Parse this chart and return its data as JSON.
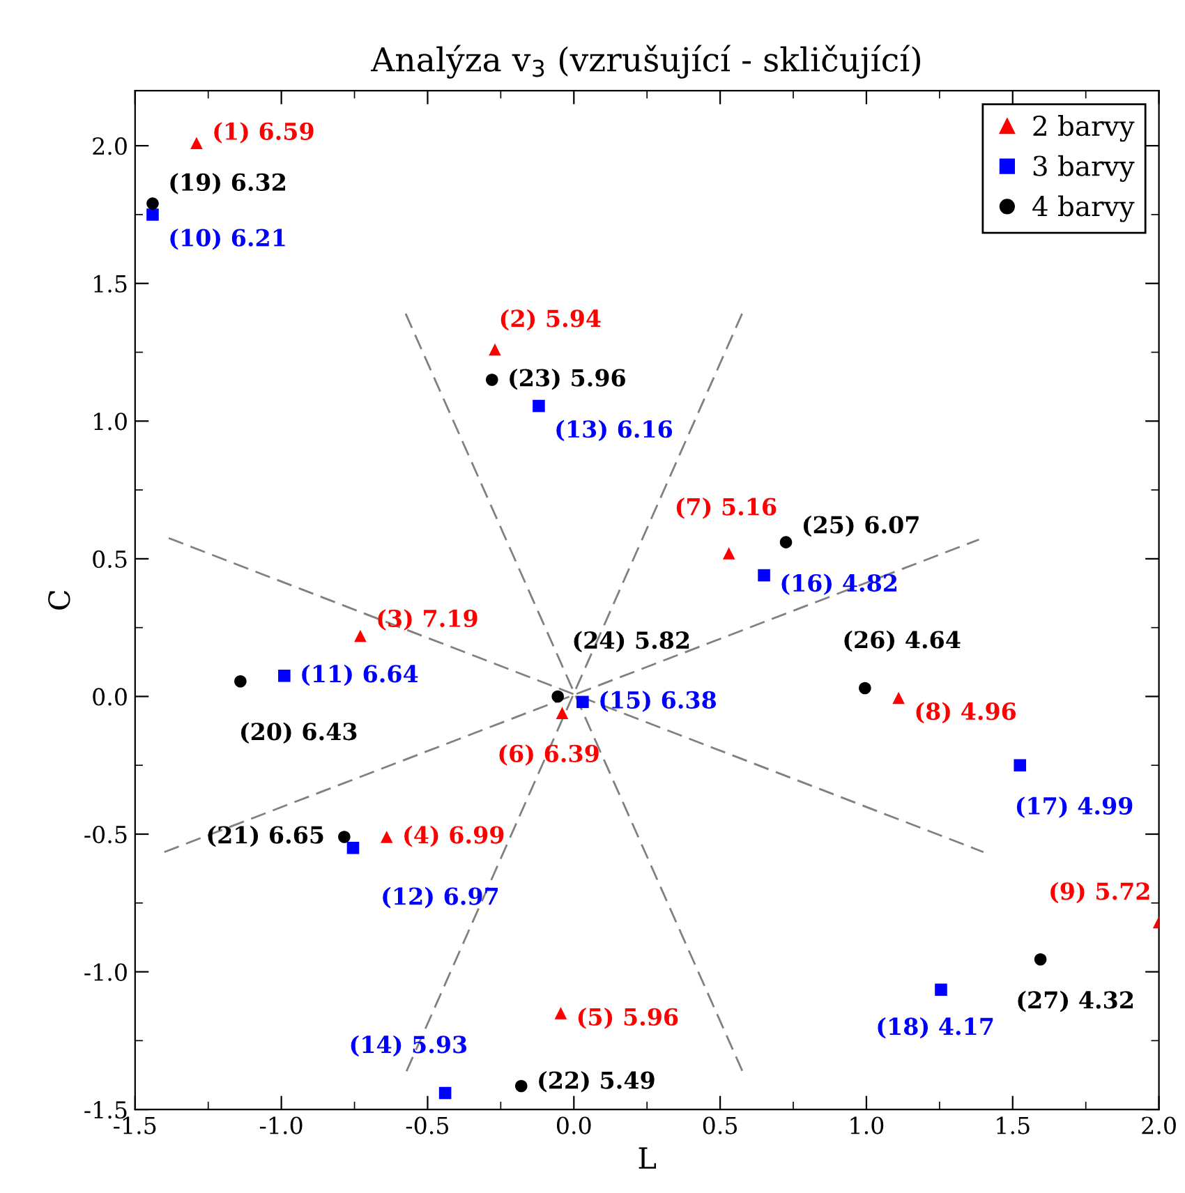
{
  "chart_data": {
    "type": "scatter",
    "title": "Analýza v$_{3}$ (vzrušující - skličující)",
    "xlabel": "L",
    "ylabel": "C",
    "xlim": [
      -1.5,
      2.0
    ],
    "ylim": [
      -1.5,
      2.2
    ],
    "xticks": [
      {
        "value": -1.5,
        "label": "-1.5"
      },
      {
        "value": -1.25,
        "label": null
      },
      {
        "value": -1,
        "label": "-1.0"
      },
      {
        "value": -0.75,
        "label": null
      },
      {
        "value": -0.5,
        "label": "-0.5"
      },
      {
        "value": -0.25,
        "label": null
      },
      {
        "value": 0,
        "label": "0.0"
      },
      {
        "value": 0.25,
        "label": null
      },
      {
        "value": 0.5,
        "label": "0.5"
      },
      {
        "value": 0.75,
        "label": null
      },
      {
        "value": 1,
        "label": "1.0"
      },
      {
        "value": 1.25,
        "label": null
      },
      {
        "value": 1.5,
        "label": "1.5"
      },
      {
        "value": 1.75,
        "label": null
      },
      {
        "value": 2,
        "label": "2.0"
      }
    ],
    "yticks": [
      {
        "value": -1.5,
        "label": "-1.5"
      },
      {
        "value": -1.25,
        "label": null
      },
      {
        "value": -1,
        "label": "-1.0"
      },
      {
        "value": -0.75,
        "label": null
      },
      {
        "value": -0.5,
        "label": "-0.5"
      },
      {
        "value": -0.25,
        "label": null
      },
      {
        "value": 0,
        "label": "0.0"
      },
      {
        "value": 0.25,
        "label": null
      },
      {
        "value": 0.5,
        "label": "0.5"
      },
      {
        "value": 0.75,
        "label": null
      },
      {
        "value": 1,
        "label": "1.0"
      },
      {
        "value": 1.25,
        "label": null
      },
      {
        "value": 1.5,
        "label": "1.5"
      },
      {
        "value": 1.75,
        "label": null
      },
      {
        "value": 2,
        "label": "2.0"
      }
    ],
    "grid": false,
    "legend": "top right",
    "series": [
      {
        "type": "line",
        "color": "#808080",
        "line_style": "dashed",
        "marker": "none",
        "x": [
          -0.575,
          0.58
        ],
        "values": [
          1.39,
          -1.37
        ]
      },
      {
        "type": "line",
        "color": "#808080",
        "line_style": "dashed",
        "marker": "none",
        "x": [
          0.575,
          -0.58
        ],
        "values": [
          1.39,
          -1.38
        ]
      },
      {
        "type": "line",
        "color": "#808080",
        "line_style": "dashed",
        "marker": "none",
        "x": [
          -1.385,
          1.4
        ],
        "values": [
          0.575,
          -0.565
        ]
      },
      {
        "type": "line",
        "color": "#808080",
        "line_style": "dashed",
        "marker": "none",
        "x": [
          -1.4,
          1.385
        ],
        "values": [
          -0.565,
          0.57
        ]
      },
      {
        "name": "2 barvy",
        "color": "#ff0000",
        "marker": "triangle",
        "x": [
          -1.29,
          -0.27,
          -0.73,
          -0.64,
          -0.045,
          -0.04,
          0.53,
          1.11,
          2.0
        ],
        "values": [
          2.01,
          1.26,
          0.22,
          -0.51,
          -1.15,
          -0.06,
          0.52,
          -0.005,
          -0.82
        ]
      },
      {
        "name": "3 barvy",
        "color": "#0000ff",
        "marker": "square",
        "x": [
          -1.44,
          -0.99,
          -0.755,
          -0.12,
          -0.44,
          0.03,
          0.65,
          1.525,
          1.255
        ],
        "values": [
          1.75,
          0.075,
          -0.55,
          1.055,
          -1.44,
          -0.02,
          0.44,
          -0.25,
          -1.065
        ]
      },
      {
        "name": "4 barvy",
        "color": "#000000",
        "marker": "circle",
        "x": [
          -1.44,
          -1.14,
          -0.785,
          -0.18,
          -0.28,
          -0.055,
          0.725,
          0.995,
          1.595
        ],
        "values": [
          1.79,
          0.055,
          -0.51,
          -1.415,
          1.15,
          0.0,
          0.56,
          0.03,
          -0.955
        ]
      }
    ],
    "annotations": [
      {
        "text": "(1) 6.59",
        "x": -1.29,
        "y": 2.01
      },
      {
        "text": "(2) 5.94",
        "x": -0.27,
        "y": 1.26
      },
      {
        "text": "(3) 7.19",
        "x": -0.73,
        "y": 0.22
      },
      {
        "text": "(4) 6.99",
        "x": -0.64,
        "y": -0.51
      },
      {
        "text": "(5) 5.96",
        "x": -0.045,
        "y": -1.15
      },
      {
        "text": "(6) 6.39",
        "x": -0.04,
        "y": -0.06
      },
      {
        "text": "(7) 5.16",
        "x": 0.53,
        "y": 0.52
      },
      {
        "text": "(8) 4.96",
        "x": 1.11,
        "y": -0.005
      },
      {
        "text": "(9) 5.72",
        "x": 2.0,
        "y": -0.82
      },
      {
        "text": "(10) 6.21",
        "x": -1.44,
        "y": 1.75
      },
      {
        "text": "(11) 6.64",
        "x": -0.99,
        "y": 0.075
      },
      {
        "text": "(12) 6.97",
        "x": -0.755,
        "y": -0.55
      },
      {
        "text": "(13) 6.16",
        "x": -0.12,
        "y": 1.055
      },
      {
        "text": "(14) 5.93",
        "x": -0.44,
        "y": -1.44
      },
      {
        "text": "(15) 6.38",
        "x": 0.03,
        "y": -0.02
      },
      {
        "text": "(16) 4.82",
        "x": 0.65,
        "y": 0.44
      },
      {
        "text": "(17) 4.99",
        "x": 1.525,
        "y": -0.25
      },
      {
        "text": "(18) 4.17",
        "x": 1.255,
        "y": -1.065
      },
      {
        "text": "(19) 6.32",
        "x": -1.44,
        "y": 1.79
      },
      {
        "text": "(20) 6.43",
        "x": -1.14,
        "y": 0.055
      },
      {
        "text": "(21) 6.65",
        "x": -0.785,
        "y": -0.51
      },
      {
        "text": "(22) 5.49",
        "x": -0.18,
        "y": -1.415
      },
      {
        "text": "(23) 5.96",
        "x": -0.28,
        "y": 1.15
      },
      {
        "text": "(24) 5.82",
        "x": -0.055,
        "y": 0.0
      },
      {
        "text": "(25) 6.07",
        "x": 0.725,
        "y": 0.56
      },
      {
        "text": "(26) 4.64",
        "x": 0.995,
        "y": 0.03
      },
      {
        "text": "(27) 4.32",
        "x": 1.595,
        "y": -0.955
      }
    ]
  }
}
